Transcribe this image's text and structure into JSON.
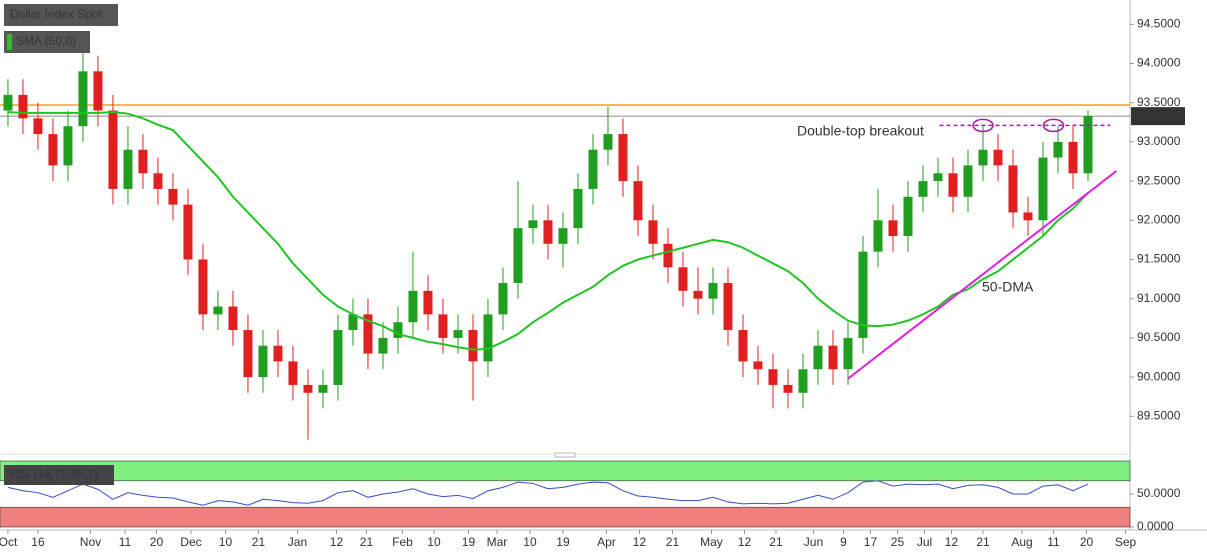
{
  "chart_data": [
    {
      "type": "candlestick",
      "title": "Dollar Index Spot",
      "open": [
        93.4,
        93.6,
        93.3,
        93.1,
        92.7,
        93.2,
        93.9,
        93.4,
        92.4,
        92.9,
        92.6,
        92.4,
        92.2,
        91.5,
        90.8,
        90.9,
        90.6,
        90.0,
        90.4,
        90.2,
        89.9,
        89.8,
        89.9,
        90.6,
        90.8,
        90.3,
        90.5,
        90.7,
        91.1,
        90.8,
        90.5,
        90.6,
        90.2,
        90.8,
        91.2,
        91.9,
        92.0,
        91.7,
        91.9,
        92.4,
        92.9,
        93.1,
        92.5,
        92.0,
        91.7,
        91.4,
        91.1,
        91.0,
        91.2,
        90.6,
        90.2,
        90.1,
        89.9,
        89.8,
        90.1,
        90.4,
        90.1,
        90.5,
        91.6,
        92.0,
        91.8,
        92.3,
        92.5,
        92.6,
        92.3,
        92.7,
        92.9,
        92.7,
        92.1,
        92.0,
        92.8,
        93.0,
        92.6
      ],
      "high": [
        93.8,
        93.8,
        93.5,
        93.3,
        93.4,
        94.3,
        94.1,
        93.6,
        93.2,
        93.1,
        92.8,
        92.6,
        92.4,
        91.7,
        91.1,
        91.1,
        90.8,
        90.6,
        90.6,
        90.4,
        90.1,
        90.1,
        90.8,
        91.0,
        91.0,
        90.7,
        90.9,
        91.6,
        91.3,
        91.0,
        90.8,
        90.8,
        91.0,
        91.4,
        92.5,
        92.2,
        92.2,
        92.1,
        92.6,
        93.1,
        93.45,
        93.3,
        92.7,
        92.2,
        91.9,
        91.6,
        91.4,
        91.4,
        91.4,
        90.8,
        90.4,
        90.3,
        90.1,
        90.3,
        90.6,
        90.6,
        90.7,
        91.8,
        92.4,
        92.2,
        92.5,
        92.7,
        92.8,
        92.8,
        92.9,
        93.2,
        93.1,
        92.9,
        92.3,
        93.0,
        93.2,
        93.2,
        93.4
      ],
      "low": [
        93.2,
        93.1,
        92.9,
        92.5,
        92.5,
        93.0,
        93.2,
        92.2,
        92.2,
        92.4,
        92.2,
        92.0,
        91.3,
        90.6,
        90.6,
        90.4,
        89.8,
        89.8,
        90.0,
        89.7,
        89.2,
        89.6,
        89.7,
        90.4,
        90.1,
        90.1,
        90.3,
        90.5,
        90.6,
        90.3,
        90.3,
        89.7,
        90.0,
        90.6,
        91.0,
        91.7,
        91.5,
        91.4,
        91.7,
        92.2,
        92.7,
        92.3,
        91.8,
        91.5,
        91.2,
        90.9,
        90.8,
        90.8,
        90.4,
        90.0,
        89.9,
        89.6,
        89.6,
        89.6,
        89.9,
        89.9,
        89.9,
        90.3,
        91.4,
        91.6,
        91.6,
        92.1,
        92.3,
        92.1,
        92.1,
        92.5,
        92.5,
        91.9,
        91.8,
        91.8,
        92.6,
        92.4,
        92.5
      ],
      "close": [
        93.6,
        93.3,
        93.1,
        92.7,
        93.2,
        93.9,
        93.4,
        92.4,
        92.9,
        92.6,
        92.4,
        92.2,
        91.5,
        90.8,
        90.9,
        90.6,
        90.0,
        90.4,
        90.2,
        89.9,
        89.8,
        89.9,
        90.6,
        90.8,
        90.3,
        90.5,
        90.7,
        91.1,
        90.8,
        90.5,
        90.6,
        90.2,
        90.8,
        91.2,
        91.9,
        92.0,
        91.7,
        91.9,
        92.4,
        92.9,
        93.1,
        92.5,
        92.0,
        91.7,
        91.4,
        91.1,
        91.0,
        91.2,
        90.6,
        90.2,
        90.1,
        89.9,
        89.8,
        90.1,
        90.4,
        90.1,
        90.5,
        91.6,
        92.0,
        91.8,
        92.3,
        92.5,
        92.6,
        92.3,
        92.7,
        92.9,
        92.7,
        92.1,
        92.0,
        92.8,
        93.0,
        92.6,
        93.33
      ],
      "up_color": "#1f9e1f",
      "down_color": "#e02020",
      "series": [
        {
          "name": "SMA (50,0)",
          "color": "#22c422",
          "values": [
            93.38,
            93.37,
            93.37,
            93.37,
            93.37,
            93.37,
            93.37,
            93.38,
            93.36,
            93.3,
            93.22,
            93.15,
            92.95,
            92.75,
            92.55,
            92.3,
            92.1,
            91.9,
            91.7,
            91.45,
            91.25,
            91.05,
            90.9,
            90.8,
            90.72,
            90.65,
            90.55,
            90.5,
            90.45,
            90.42,
            90.38,
            90.35,
            90.36,
            90.45,
            90.55,
            90.7,
            90.82,
            90.95,
            91.05,
            91.15,
            91.3,
            91.42,
            91.5,
            91.55,
            91.6,
            91.65,
            91.7,
            91.75,
            91.72,
            91.65,
            91.55,
            91.45,
            91.35,
            91.2,
            91.0,
            90.85,
            90.72,
            90.66,
            90.65,
            90.67,
            90.72,
            90.8,
            90.9,
            91.05,
            91.12,
            91.25,
            91.35,
            91.5,
            91.65,
            91.8,
            92.0,
            92.15,
            92.35
          ]
        }
      ],
      "xlim": [
        -0.53,
        74.8
      ],
      "xticks": [
        {
          "value": 0,
          "label": "Oct"
        },
        {
          "value": 2,
          "label": "16"
        },
        {
          "value": 5.5,
          "label": "Nov"
        },
        {
          "value": 7.8,
          "label": "11"
        },
        {
          "value": 9.9,
          "label": "20"
        },
        {
          "value": 12.2,
          "label": "Dec"
        },
        {
          "value": 14.5,
          "label": "10"
        },
        {
          "value": 16.7,
          "label": "21"
        },
        {
          "value": 19.3,
          "label": "Jan"
        },
        {
          "value": 21.9,
          "label": "12"
        },
        {
          "value": 23.9,
          "label": "21"
        },
        {
          "value": 26.3,
          "label": "Feb"
        },
        {
          "value": 28.4,
          "label": "10"
        },
        {
          "value": 30.7,
          "label": "19"
        },
        {
          "value": 32.6,
          "label": "Mar"
        },
        {
          "value": 34.8,
          "label": "10"
        },
        {
          "value": 37,
          "label": "19"
        },
        {
          "value": 39.9,
          "label": "Apr"
        },
        {
          "value": 42.1,
          "label": "12"
        },
        {
          "value": 44.3,
          "label": "21"
        },
        {
          "value": 46.9,
          "label": "May"
        },
        {
          "value": 49.1,
          "label": "12"
        },
        {
          "value": 51.2,
          "label": "21"
        },
        {
          "value": 53.7,
          "label": "Jun"
        },
        {
          "value": 55.7,
          "label": "9"
        },
        {
          "value": 57.5,
          "label": "17"
        },
        {
          "value": 59.3,
          "label": "25"
        },
        {
          "value": 61.1,
          "label": "Jul"
        },
        {
          "value": 62.9,
          "label": "12"
        },
        {
          "value": 65,
          "label": "21"
        },
        {
          "value": 67.6,
          "label": "Aug"
        },
        {
          "value": 69.7,
          "label": "11"
        },
        {
          "value": 71.9,
          "label": "20"
        },
        {
          "value": 74.5,
          "label": "Sep"
        }
      ],
      "ylim": [
        89.07,
        94.81
      ],
      "yticks": [
        {
          "value": 89.5,
          "label": "89.5000"
        },
        {
          "value": 90,
          "label": "90.0000"
        },
        {
          "value": 90.5,
          "label": "90.5000"
        },
        {
          "value": 91,
          "label": "91.0000"
        },
        {
          "value": 91.5,
          "label": "91.5000"
        },
        {
          "value": 92,
          "label": "92.0000"
        },
        {
          "value": 92.5,
          "label": "92.5000"
        },
        {
          "value": 93,
          "label": "93.0000"
        },
        {
          "value": 93.5,
          "label": "93.5000"
        },
        {
          "value": 94,
          "label": "94.0000"
        },
        {
          "value": 94.5,
          "label": "94.5000"
        }
      ],
      "last_price": 93.3287,
      "hlines": [
        {
          "value": 93.47,
          "color": "#f0a020"
        }
      ],
      "trendline": {
        "x": [
          56,
          73.9
        ],
        "y": [
          89.98,
          92.63
        ],
        "color": "#e020e0"
      },
      "double_top": {
        "x": [
          65,
          69.7
        ],
        "value": 93.21,
        "range": [
          62.1,
          73.5
        ],
        "color": "#a020a0"
      },
      "annotations": [
        {
          "text": "Double-top breakout",
          "color": "#a020a0"
        },
        {
          "text": "50-DMA",
          "color": "#22a822"
        }
      ]
    },
    {
      "type": "line",
      "title": "RSI (14,70,30,1)",
      "values": [
        60,
        55,
        52,
        45,
        55,
        65,
        57,
        42,
        52,
        48,
        45,
        44,
        38,
        33,
        40,
        38,
        33,
        42,
        40,
        37,
        36,
        40,
        52,
        55,
        45,
        50,
        53,
        58,
        50,
        46,
        48,
        43,
        55,
        60,
        68,
        66,
        58,
        60,
        65,
        68,
        67,
        55,
        47,
        45,
        42,
        40,
        40,
        45,
        38,
        35,
        36,
        35,
        36,
        42,
        48,
        42,
        52,
        68,
        70,
        62,
        65,
        64,
        65,
        58,
        63,
        64,
        60,
        50,
        50,
        62,
        64,
        55,
        65
      ],
      "color": "#3a4cc8",
      "ylim": [
        0,
        100
      ],
      "yticks": [
        {
          "value": 50,
          "label": "50.0000"
        },
        {
          "value": 0,
          "label": "0.0000"
        }
      ],
      "overbought": 70,
      "oversold": 30,
      "overbought_color": "#80f080",
      "oversold_color": "#f08080"
    }
  ]
}
